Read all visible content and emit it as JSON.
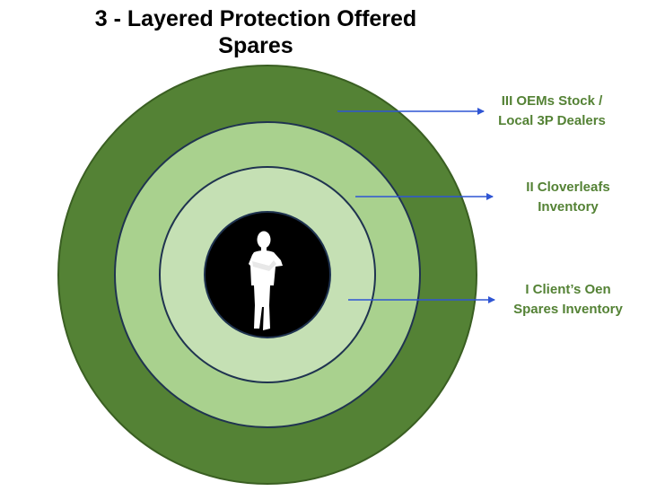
{
  "title": {
    "line1": "3 - Layered Protection Offered",
    "line2": "Spares"
  },
  "layers": [
    {
      "level": "III",
      "label_line1": "III OEMs Stock /",
      "label_line2": "Local 3P Dealers",
      "color": "#548235"
    },
    {
      "level": "II",
      "label_line1": "II Cloverleafs",
      "label_line2": "Inventory",
      "color": "#A9D18E"
    },
    {
      "level": "I",
      "label_line1": "I Client’s Oen",
      "label_line2": "Spares Inventory",
      "color": "#C5E0B4"
    }
  ],
  "center": {
    "icon": "person-silhouette-icon",
    "color": "#000000"
  },
  "colors": {
    "label_text": "#548235",
    "arrow": "#2F55D4",
    "ring_border": "#1F3350"
  }
}
